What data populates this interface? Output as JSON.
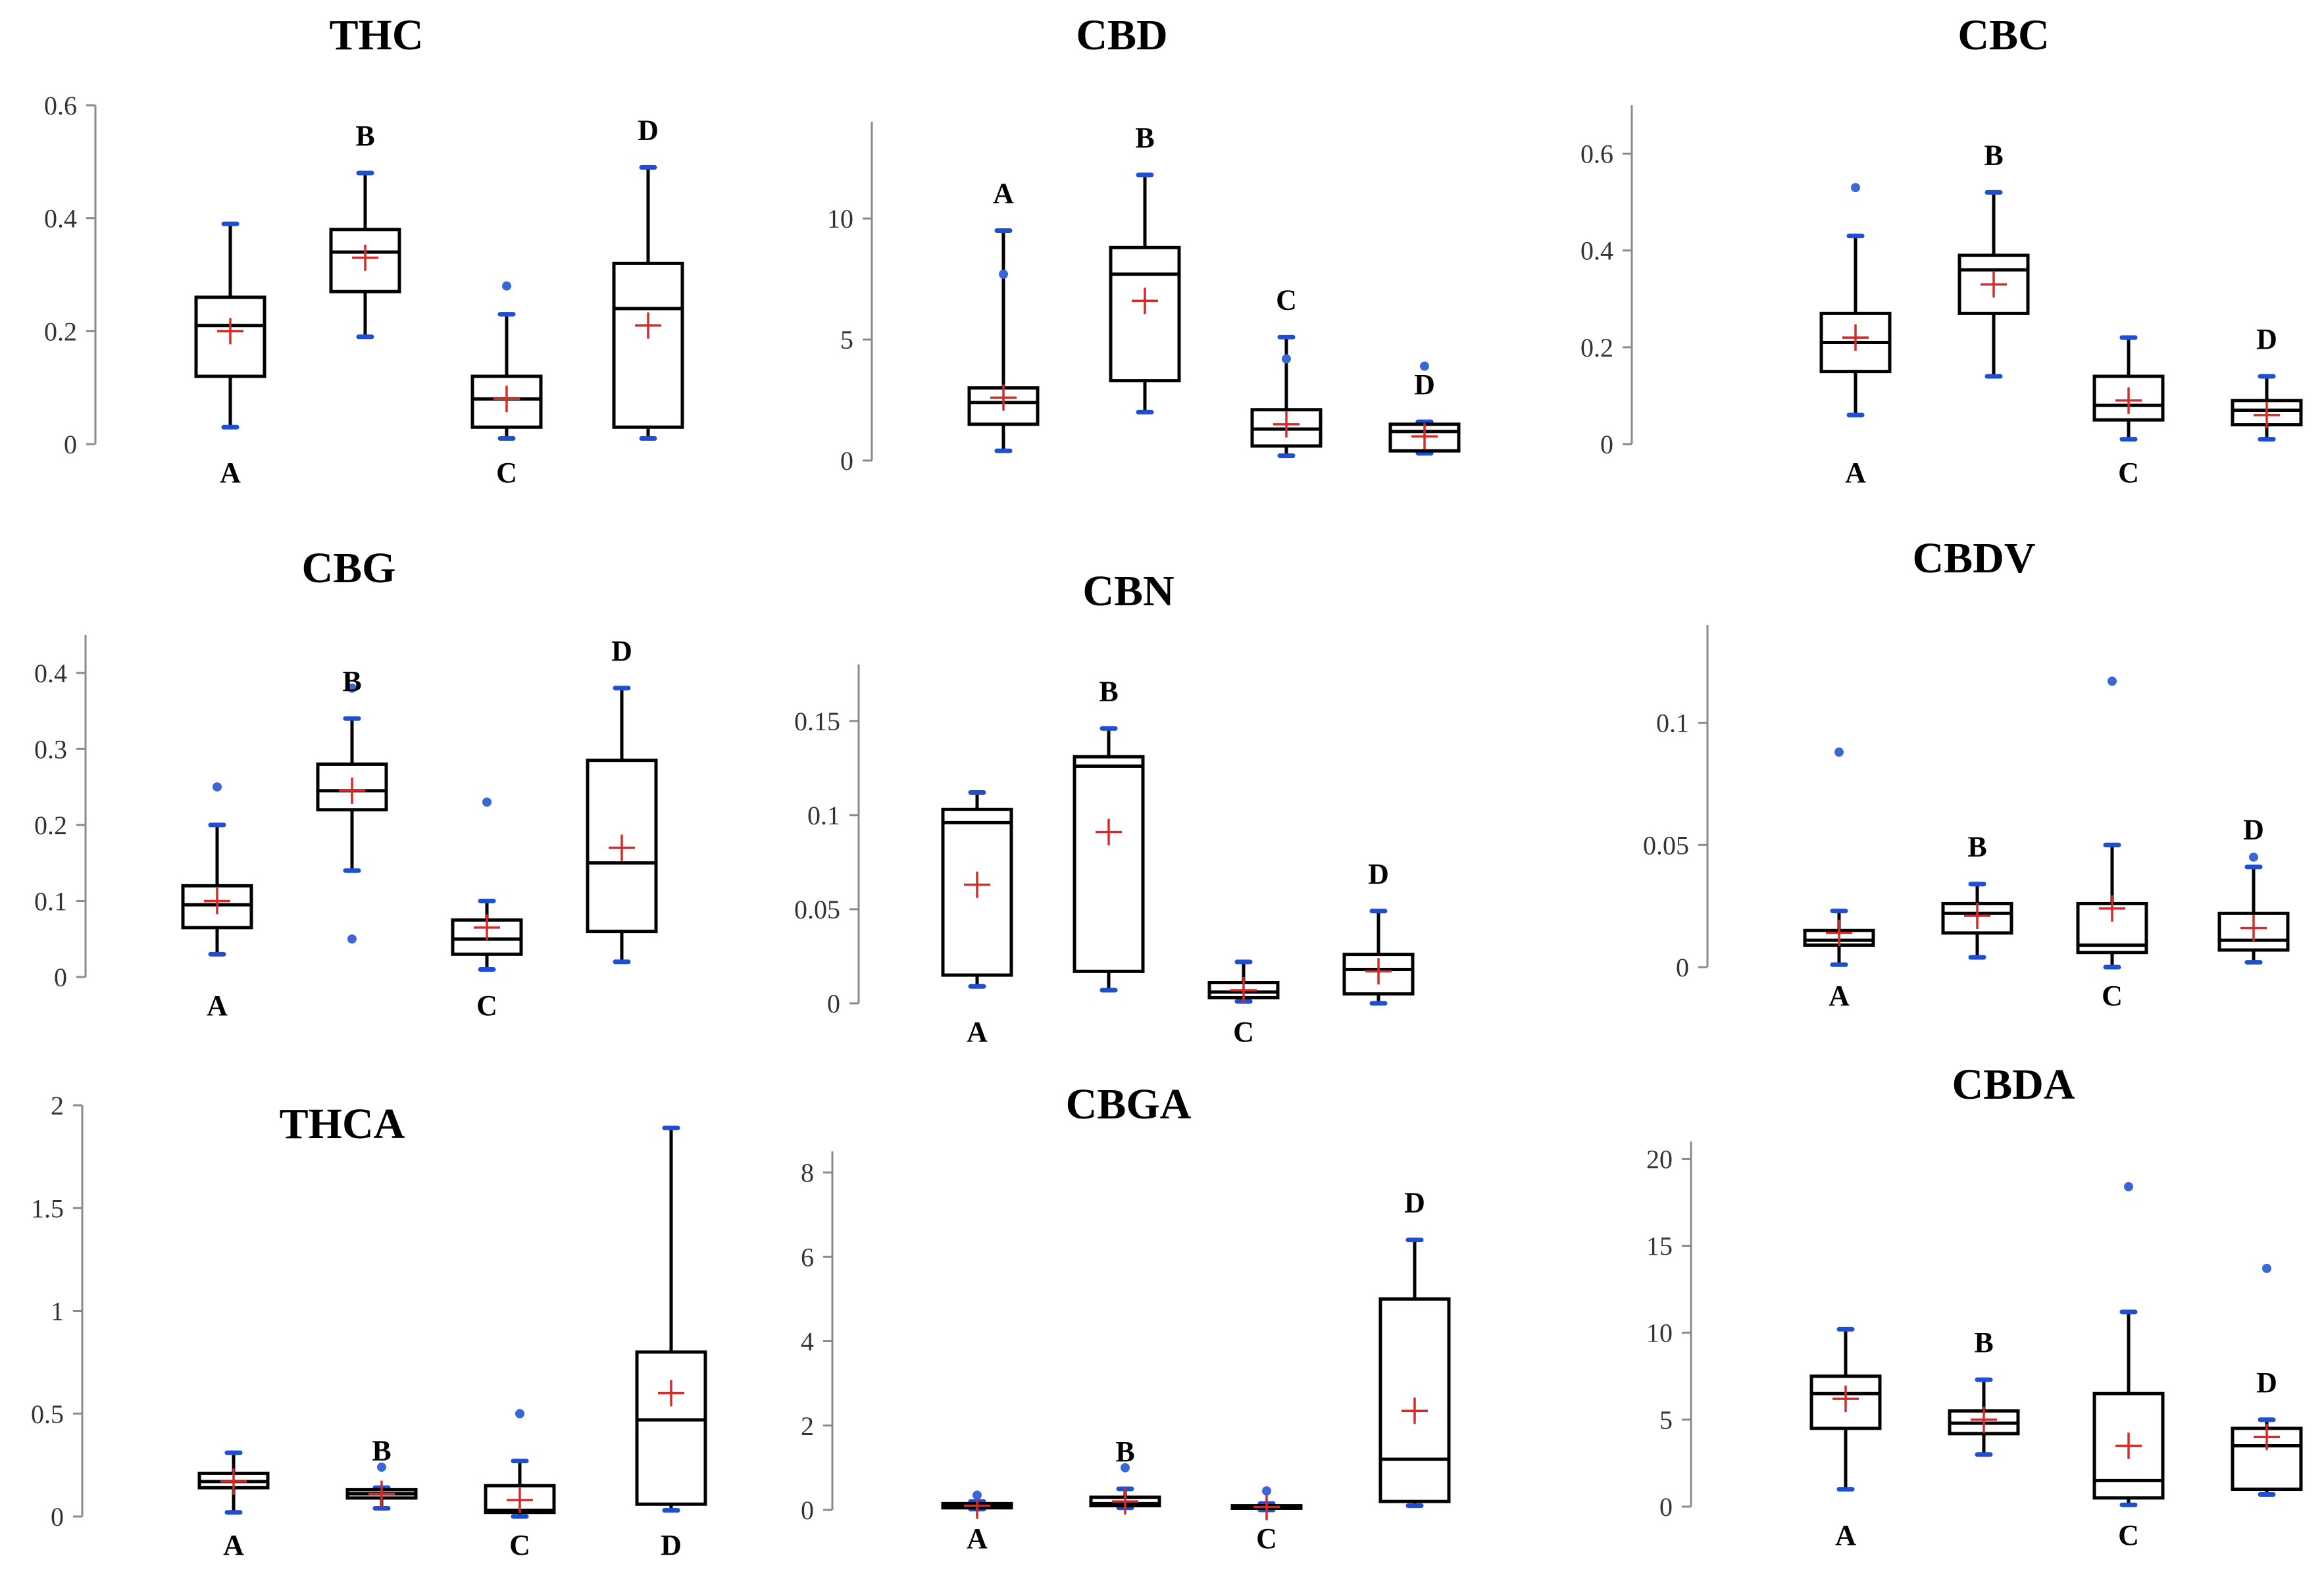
{
  "chart_data": [
    {
      "type": "box",
      "title": "THC",
      "ylim": [
        0,
        0.6
      ],
      "yticks": [
        0,
        0.2,
        0.4,
        0.6
      ],
      "ytick_labels": [
        "0",
        "0.2",
        "0.4",
        "0.6"
      ],
      "groups": [
        {
          "label": "A",
          "label_pos": "below",
          "min": 0.03,
          "q1": 0.12,
          "median": 0.21,
          "q3": 0.26,
          "max": 0.39,
          "mean": 0.2,
          "outliers": []
        },
        {
          "label": "B",
          "label_pos": "above",
          "min": 0.19,
          "q1": 0.27,
          "median": 0.34,
          "q3": 0.38,
          "max": 0.48,
          "mean": 0.33,
          "outliers": []
        },
        {
          "label": "C",
          "label_pos": "below",
          "min": 0.01,
          "q1": 0.03,
          "median": 0.08,
          "q3": 0.12,
          "max": 0.23,
          "mean": 0.08,
          "outliers": [
            0.28
          ]
        },
        {
          "label": "D",
          "label_pos": "above",
          "min": 0.01,
          "q1": 0.03,
          "median": 0.24,
          "q3": 0.32,
          "max": 0.49,
          "mean": 0.21,
          "outliers": []
        }
      ]
    },
    {
      "type": "box",
      "title": "CBD",
      "ylim": [
        0,
        14
      ],
      "yticks": [
        0,
        5,
        10
      ],
      "ytick_labels": [
        "0",
        "5",
        "10"
      ],
      "groups": [
        {
          "label": "A",
          "label_pos": "above",
          "min": 0.4,
          "q1": 1.5,
          "median": 2.4,
          "q3": 3.0,
          "max": 9.5,
          "mean": 2.6,
          "outliers": [
            7.7
          ]
        },
        {
          "label": "B",
          "label_pos": "above",
          "min": 2.0,
          "q1": 3.3,
          "median": 7.7,
          "q3": 8.8,
          "max": 11.8,
          "mean": 6.6,
          "outliers": []
        },
        {
          "label": "C",
          "label_pos": "above",
          "min": 0.2,
          "q1": 0.6,
          "median": 1.3,
          "q3": 2.1,
          "max": 5.1,
          "mean": 1.5,
          "outliers": [
            4.2
          ]
        },
        {
          "label": "D",
          "label_pos": "above",
          "min": 0.3,
          "q1": 0.4,
          "median": 1.2,
          "q3": 1.5,
          "max": 1.6,
          "mean": 1.0,
          "outliers": [
            3.9
          ]
        }
      ]
    },
    {
      "type": "box",
      "title": "CBC",
      "ylim": [
        0,
        0.7
      ],
      "yticks": [
        0,
        0.2,
        0.4,
        0.6
      ],
      "ytick_labels": [
        "0",
        "0.2",
        "0.4",
        "0.6"
      ],
      "groups": [
        {
          "label": "A",
          "label_pos": "below",
          "min": 0.06,
          "q1": 0.15,
          "median": 0.21,
          "q3": 0.27,
          "max": 0.43,
          "mean": 0.22,
          "outliers": [
            0.53
          ]
        },
        {
          "label": "B",
          "label_pos": "above",
          "min": 0.14,
          "q1": 0.27,
          "median": 0.36,
          "q3": 0.39,
          "max": 0.52,
          "mean": 0.33,
          "outliers": []
        },
        {
          "label": "C",
          "label_pos": "below",
          "min": 0.01,
          "q1": 0.05,
          "median": 0.08,
          "q3": 0.14,
          "max": 0.22,
          "mean": 0.09,
          "outliers": []
        },
        {
          "label": "D",
          "label_pos": "above",
          "min": 0.01,
          "q1": 0.04,
          "median": 0.07,
          "q3": 0.09,
          "max": 0.14,
          "mean": 0.06,
          "outliers": []
        }
      ]
    },
    {
      "type": "box",
      "title": "CBG",
      "ylim": [
        0,
        0.45
      ],
      "yticks": [
        0,
        0.1,
        0.2,
        0.3,
        0.4
      ],
      "ytick_labels": [
        "0",
        "0.1",
        "0.2",
        "0.3",
        "0.4"
      ],
      "groups": [
        {
          "label": "A",
          "label_pos": "below",
          "min": 0.03,
          "q1": 0.065,
          "median": 0.095,
          "q3": 0.12,
          "max": 0.2,
          "mean": 0.1,
          "outliers": [
            0.25
          ]
        },
        {
          "label": "B",
          "label_pos": "above",
          "min": 0.14,
          "q1": 0.22,
          "median": 0.245,
          "q3": 0.28,
          "max": 0.34,
          "mean": 0.245,
          "outliers": [
            0.38,
            0.05
          ]
        },
        {
          "label": "C",
          "label_pos": "below",
          "min": 0.01,
          "q1": 0.03,
          "median": 0.05,
          "q3": 0.075,
          "max": 0.1,
          "mean": 0.065,
          "outliers": [
            0.23
          ]
        },
        {
          "label": "D",
          "label_pos": "above",
          "min": 0.02,
          "q1": 0.06,
          "median": 0.15,
          "q3": 0.285,
          "max": 0.38,
          "mean": 0.17,
          "outliers": []
        }
      ]
    },
    {
      "type": "box",
      "title": "CBN",
      "ylim": [
        0,
        0.18
      ],
      "yticks": [
        0,
        0.05,
        0.1,
        0.15
      ],
      "ytick_labels": [
        "0",
        "0.05",
        "0.1",
        "0.15"
      ],
      "groups": [
        {
          "label": "A",
          "label_pos": "below",
          "min": 0.009,
          "q1": 0.015,
          "median": 0.096,
          "q3": 0.103,
          "max": 0.112,
          "mean": 0.063,
          "outliers": []
        },
        {
          "label": "B",
          "label_pos": "above",
          "min": 0.007,
          "q1": 0.017,
          "median": 0.126,
          "q3": 0.131,
          "max": 0.146,
          "mean": 0.091,
          "outliers": []
        },
        {
          "label": "C",
          "label_pos": "below",
          "min": 0.001,
          "q1": 0.003,
          "median": 0.006,
          "q3": 0.011,
          "max": 0.022,
          "mean": 0.007,
          "outliers": []
        },
        {
          "label": "D",
          "label_pos": "above",
          "min": 0.0,
          "q1": 0.005,
          "median": 0.018,
          "q3": 0.026,
          "max": 0.049,
          "mean": 0.017,
          "outliers": []
        }
      ]
    },
    {
      "type": "box",
      "title": "CBDV",
      "ylim": [
        0,
        0.14
      ],
      "yticks": [
        0,
        0.05,
        0.1
      ],
      "ytick_labels": [
        "0",
        "0.05",
        "0.1"
      ],
      "groups": [
        {
          "label": "A",
          "label_pos": "below",
          "min": 0.001,
          "q1": 0.009,
          "median": 0.011,
          "q3": 0.015,
          "max": 0.023,
          "mean": 0.014,
          "outliers": [
            0.088
          ]
        },
        {
          "label": "B",
          "label_pos": "above",
          "min": 0.004,
          "q1": 0.014,
          "median": 0.022,
          "q3": 0.026,
          "max": 0.034,
          "mean": 0.021,
          "outliers": []
        },
        {
          "label": "C",
          "label_pos": "below",
          "min": 0.0,
          "q1": 0.006,
          "median": 0.009,
          "q3": 0.026,
          "max": 0.05,
          "mean": 0.024,
          "outliers": [
            0.117
          ]
        },
        {
          "label": "D",
          "label_pos": "above",
          "min": 0.002,
          "q1": 0.007,
          "median": 0.011,
          "q3": 0.022,
          "max": 0.041,
          "mean": 0.016,
          "outliers": [
            0.045
          ]
        }
      ]
    },
    {
      "type": "box",
      "title": "THCA",
      "ylim": [
        0,
        2
      ],
      "yticks": [
        0,
        0.5,
        1,
        1.5,
        2
      ],
      "ytick_labels": [
        "0",
        "0.5",
        "1",
        "1.5",
        "2"
      ],
      "groups": [
        {
          "label": "A",
          "label_pos": "below",
          "min": 0.02,
          "q1": 0.14,
          "median": 0.17,
          "q3": 0.21,
          "max": 0.31,
          "mean": 0.17,
          "outliers": []
        },
        {
          "label": "B",
          "label_pos": "above",
          "min": 0.04,
          "q1": 0.09,
          "median": 0.11,
          "q3": 0.13,
          "max": 0.14,
          "mean": 0.11,
          "outliers": [
            0.24
          ]
        },
        {
          "label": "C",
          "label_pos": "below",
          "min": 0.0,
          "q1": 0.02,
          "median": 0.03,
          "q3": 0.15,
          "max": 0.27,
          "mean": 0.08,
          "outliers": [
            0.5
          ]
        },
        {
          "label": "D",
          "label_pos": "below",
          "min": 0.03,
          "q1": 0.06,
          "median": 0.47,
          "q3": 0.8,
          "max": 1.89,
          "mean": 0.6,
          "outliers": []
        }
      ]
    },
    {
      "type": "box",
      "title": "CBGA",
      "ylim": [
        0,
        8.5
      ],
      "yticks": [
        0,
        2,
        4,
        6,
        8
      ],
      "ytick_labels": [
        "0",
        "2",
        "4",
        "6",
        "8"
      ],
      "groups": [
        {
          "label": "A",
          "label_pos": "below",
          "min": 0.02,
          "q1": 0.05,
          "median": 0.1,
          "q3": 0.15,
          "max": 0.2,
          "mean": 0.1,
          "outliers": [
            0.35
          ]
        },
        {
          "label": "B",
          "label_pos": "above",
          "min": 0.05,
          "q1": 0.1,
          "median": 0.15,
          "q3": 0.3,
          "max": 0.5,
          "mean": 0.2,
          "outliers": [
            1.0
          ]
        },
        {
          "label": "C",
          "label_pos": "below",
          "min": 0.0,
          "q1": 0.04,
          "median": 0.06,
          "q3": 0.1,
          "max": 0.15,
          "mean": 0.07,
          "outliers": [
            0.45
          ]
        },
        {
          "label": "D",
          "label_pos": "above",
          "min": 0.1,
          "q1": 0.2,
          "median": 1.2,
          "q3": 5.0,
          "max": 6.4,
          "mean": 2.35,
          "outliers": []
        }
      ]
    },
    {
      "type": "box",
      "title": "CBDA",
      "ylim": [
        0,
        21
      ],
      "yticks": [
        0,
        5,
        10,
        15,
        20
      ],
      "ytick_labels": [
        "0",
        "5",
        "10",
        "15",
        "20"
      ],
      "groups": [
        {
          "label": "A",
          "label_pos": "below",
          "min": 1.0,
          "q1": 4.5,
          "median": 6.5,
          "q3": 7.5,
          "max": 10.2,
          "mean": 6.2,
          "outliers": []
        },
        {
          "label": "B",
          "label_pos": "above",
          "min": 3.0,
          "q1": 4.2,
          "median": 4.8,
          "q3": 5.5,
          "max": 7.3,
          "mean": 5.0,
          "outliers": []
        },
        {
          "label": "C",
          "label_pos": "below",
          "min": 0.1,
          "q1": 0.5,
          "median": 1.5,
          "q3": 6.5,
          "max": 11.2,
          "mean": 3.5,
          "outliers": [
            18.4
          ]
        },
        {
          "label": "D",
          "label_pos": "above",
          "min": 0.7,
          "q1": 1.0,
          "median": 3.5,
          "q3": 4.5,
          "max": 5.0,
          "mean": 4.0,
          "outliers": [
            13.7
          ]
        }
      ]
    }
  ]
}
